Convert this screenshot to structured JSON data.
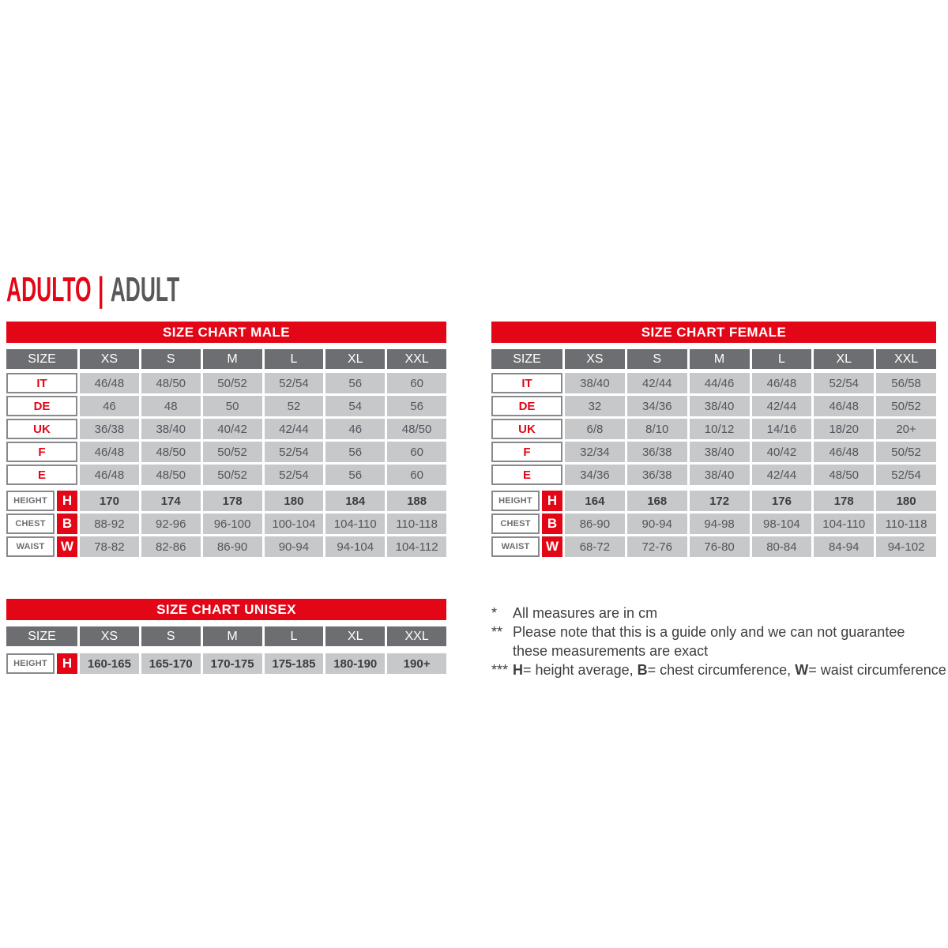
{
  "title": {
    "primary": "ADULTO",
    "separator": "|",
    "secondary": "ADULT"
  },
  "colors": {
    "brand_red": "#e30617",
    "header_gray": "#6d6e71",
    "cell_gray": "#c7c8ca",
    "text_gray": "#54555a"
  },
  "tables": [
    {
      "id": "male",
      "title": "SIZE CHART MALE",
      "corner_label": "SIZE",
      "columns": [
        "XS",
        "S",
        "M",
        "L",
        "XL",
        "XXL"
      ],
      "size_rows": [
        {
          "label": "IT",
          "values": [
            "46/48",
            "48/50",
            "50/52",
            "52/54",
            "56",
            "60"
          ]
        },
        {
          "label": "DE",
          "values": [
            "46",
            "48",
            "50",
            "52",
            "54",
            "56"
          ]
        },
        {
          "label": "UK",
          "values": [
            "36/38",
            "38/40",
            "40/42",
            "42/44",
            "46",
            "48/50"
          ]
        },
        {
          "label": "F",
          "values": [
            "46/48",
            "48/50",
            "50/52",
            "52/54",
            "56",
            "60"
          ]
        },
        {
          "label": "E",
          "values": [
            "46/48",
            "48/50",
            "50/52",
            "52/54",
            "56",
            "60"
          ]
        }
      ],
      "measure_rows": [
        {
          "label": "HEIGHT",
          "badge": "H",
          "bold": true,
          "values": [
            "170",
            "174",
            "178",
            "180",
            "184",
            "188"
          ]
        },
        {
          "label": "CHEST",
          "badge": "B",
          "bold": false,
          "values": [
            "88-92",
            "92-96",
            "96-100",
            "100-104",
            "104-110",
            "110-118"
          ]
        },
        {
          "label": "WAIST",
          "badge": "W",
          "bold": false,
          "values": [
            "78-82",
            "82-86",
            "86-90",
            "90-94",
            "94-104",
            "104-112"
          ]
        }
      ]
    },
    {
      "id": "female",
      "title": "SIZE CHART FEMALE",
      "corner_label": "SIZE",
      "columns": [
        "XS",
        "S",
        "M",
        "L",
        "XL",
        "XXL"
      ],
      "size_rows": [
        {
          "label": "IT",
          "values": [
            "38/40",
            "42/44",
            "44/46",
            "46/48",
            "52/54",
            "56/58"
          ]
        },
        {
          "label": "DE",
          "values": [
            "32",
            "34/36",
            "38/40",
            "42/44",
            "46/48",
            "50/52"
          ]
        },
        {
          "label": "UK",
          "values": [
            "6/8",
            "8/10",
            "10/12",
            "14/16",
            "18/20",
            "20+"
          ]
        },
        {
          "label": "F",
          "values": [
            "32/34",
            "36/38",
            "38/40",
            "40/42",
            "46/48",
            "50/52"
          ]
        },
        {
          "label": "E",
          "values": [
            "34/36",
            "36/38",
            "38/40",
            "42/44",
            "48/50",
            "52/54"
          ]
        }
      ],
      "measure_rows": [
        {
          "label": "HEIGHT",
          "badge": "H",
          "bold": true,
          "values": [
            "164",
            "168",
            "172",
            "176",
            "178",
            "180"
          ]
        },
        {
          "label": "CHEST",
          "badge": "B",
          "bold": false,
          "values": [
            "86-90",
            "90-94",
            "94-98",
            "98-104",
            "104-110",
            "110-118"
          ]
        },
        {
          "label": "WAIST",
          "badge": "W",
          "bold": false,
          "values": [
            "68-72",
            "72-76",
            "76-80",
            "80-84",
            "84-94",
            "94-102"
          ]
        }
      ]
    },
    {
      "id": "unisex",
      "title": "SIZE CHART UNISEX",
      "corner_label": "SIZE",
      "columns": [
        "XS",
        "S",
        "M",
        "L",
        "XL",
        "XXL"
      ],
      "size_rows": [],
      "measure_rows": [
        {
          "label": "HEIGHT",
          "badge": "H",
          "bold": true,
          "values": [
            "160-165",
            "165-170",
            "170-175",
            "175-185",
            "180-190",
            "190+"
          ]
        }
      ]
    }
  ],
  "footnotes": {
    "lines": [
      {
        "marker": "*",
        "parts": [
          {
            "text": "All measures are in cm",
            "bold": false
          }
        ]
      },
      {
        "marker": "**",
        "parts": [
          {
            "text": "Please note that this is a guide only and we can not guarantee these measurements are exact",
            "bold": false
          }
        ]
      },
      {
        "marker": "***",
        "parts": [
          {
            "text": "H",
            "bold": true
          },
          {
            "text": "= height average, ",
            "bold": false
          },
          {
            "text": "B",
            "bold": true
          },
          {
            "text": "= chest circumference, ",
            "bold": false
          },
          {
            "text": "W",
            "bold": true
          },
          {
            "text": "= waist circumference",
            "bold": false
          }
        ]
      }
    ]
  }
}
